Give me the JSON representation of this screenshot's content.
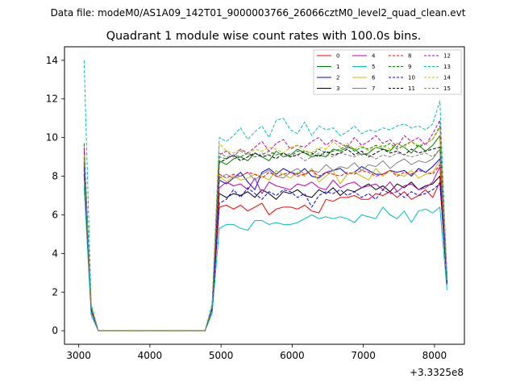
{
  "figure": {
    "suptitle": "Data file: modeM0/AS1A09_142T01_9000003766_26066cztM0_level2_quad_clean.evt"
  },
  "chart_data": {
    "type": "line",
    "title": "Quadrant 1 module wise count rates with 100.0s bins.",
    "xlabel": "",
    "ylabel": "",
    "x_offset_label": "+3.3325e8",
    "xlim": [
      2800,
      8420
    ],
    "ylim": [
      -0.7,
      14.7
    ],
    "xticks": [
      3000,
      4000,
      5000,
      6000,
      7000,
      8000
    ],
    "xtick_labels": [
      "3000",
      "4000",
      "5000",
      "6000",
      "7000",
      "8000"
    ],
    "yticks": [
      0,
      2,
      4,
      6,
      8,
      10,
      12,
      14
    ],
    "ytick_labels": [
      "0",
      "2",
      "4",
      "6",
      "8",
      "10",
      "12",
      "14"
    ],
    "grid": false,
    "legend_position": "upper right",
    "legend_columns": 4,
    "x": [
      3075,
      3175,
      3275,
      4775,
      4875,
      4975,
      5075,
      5175,
      5275,
      5375,
      5475,
      5575,
      5675,
      5775,
      5875,
      5975,
      6075,
      6175,
      6275,
      6375,
      6475,
      6575,
      6675,
      6775,
      6875,
      6975,
      7075,
      7175,
      7275,
      7375,
      7475,
      7575,
      7675,
      7775,
      7875,
      7975,
      8075,
      8175
    ],
    "series": [
      {
        "name": "0",
        "color": "#ff0000",
        "dash": "solid",
        "values": [
          8.5,
          1.0,
          0,
          0,
          1.1,
          6.4,
          6.5,
          6.3,
          6.5,
          6.2,
          6.4,
          6.6,
          6.0,
          6.3,
          6.4,
          6.4,
          6.3,
          6.5,
          6.2,
          6.1,
          6.8,
          6.7,
          6.9,
          6.9,
          7.0,
          6.8,
          6.8,
          7.1,
          7.0,
          7.2,
          6.9,
          7.2,
          6.8,
          7.0,
          7.3,
          6.9,
          7.7,
          2.6
        ]
      },
      {
        "name": "1",
        "color": "#008000",
        "dash": "solid",
        "values": [
          9.0,
          1.3,
          0,
          0,
          1.3,
          8.8,
          8.6,
          8.9,
          9.0,
          8.8,
          9.2,
          9.0,
          8.8,
          9.3,
          9.0,
          9.1,
          9.4,
          9.2,
          9.0,
          9.1,
          9.0,
          9.4,
          9.3,
          9.5,
          9.4,
          9.1,
          9.2,
          9.5,
          9.4,
          9.3,
          9.7,
          9.5,
          9.2,
          9.6,
          9.3,
          9.6,
          10.1,
          2.7
        ]
      },
      {
        "name": "2",
        "color": "#0000ff",
        "dash": "solid",
        "values": [
          8.7,
          1.1,
          0,
          0,
          1.2,
          7.8,
          7.6,
          7.9,
          8.2,
          7.7,
          7.3,
          8.2,
          8.4,
          8.1,
          8.4,
          8.2,
          8.1,
          8.4,
          8.0,
          7.9,
          8.2,
          8.3,
          8.4,
          8.1,
          8.2,
          8.5,
          8.3,
          8.1,
          8.1,
          8.3,
          8.2,
          8.3,
          8.0,
          8.4,
          8.2,
          8.5,
          8.9,
          2.4
        ]
      },
      {
        "name": "3",
        "color": "#000000",
        "dash": "solid",
        "values": [
          8.1,
          1.2,
          0,
          0,
          1.2,
          7.1,
          6.9,
          7.1,
          7.0,
          7.2,
          6.9,
          7.3,
          7.1,
          6.8,
          7.2,
          7.1,
          7.3,
          7.0,
          6.9,
          7.3,
          7.1,
          7.4,
          7.0,
          7.3,
          7.2,
          7.4,
          7.6,
          7.3,
          7.5,
          7.2,
          7.6,
          7.4,
          7.7,
          7.3,
          7.5,
          7.6,
          8.0,
          2.5
        ]
      },
      {
        "name": "4",
        "color": "#bf00bf",
        "dash": "solid",
        "values": [
          8.6,
          1.1,
          0,
          0,
          1.1,
          7.4,
          7.7,
          7.5,
          7.6,
          7.3,
          7.9,
          7.1,
          7.7,
          7.5,
          7.4,
          7.3,
          7.6,
          7.5,
          7.7,
          7.4,
          7.3,
          7.8,
          7.4,
          7.6,
          7.7,
          7.4,
          7.5,
          7.6,
          7.3,
          7.7,
          7.2,
          7.5,
          7.6,
          7.3,
          7.4,
          7.7,
          8.5,
          2.6
        ]
      },
      {
        "name": "5",
        "color": "#00bfbf",
        "dash": "solid",
        "values": [
          7.5,
          0.8,
          0,
          0,
          0.9,
          5.3,
          5.5,
          5.5,
          5.3,
          5.2,
          5.7,
          5.7,
          5.5,
          5.6,
          5.5,
          5.5,
          5.6,
          5.8,
          6.0,
          5.8,
          5.9,
          5.8,
          5.9,
          5.8,
          5.6,
          6.0,
          5.9,
          5.8,
          6.4,
          6.0,
          5.8,
          6.2,
          5.6,
          6.2,
          6.3,
          6.1,
          6.4,
          2.1
        ]
      },
      {
        "name": "6",
        "color": "#bfbf00",
        "dash": "solid",
        "values": [
          8.9,
          1.2,
          0,
          0,
          1.2,
          8.0,
          7.7,
          8.0,
          7.8,
          7.9,
          8.1,
          8.0,
          7.8,
          8.3,
          8.1,
          7.9,
          8.2,
          8.0,
          8.4,
          7.7,
          8.0,
          8.3,
          7.6,
          8.1,
          8.2,
          8.0,
          7.8,
          8.4,
          8.0,
          8.3,
          8.1,
          8.0,
          8.3,
          7.9,
          8.1,
          8.2,
          8.8,
          2.6
        ]
      },
      {
        "name": "7",
        "color": "#808080",
        "dash": "solid",
        "values": [
          8.3,
          1.1,
          0,
          0,
          1.2,
          7.9,
          8.1,
          7.9,
          8.0,
          8.2,
          7.8,
          8.1,
          8.3,
          8.0,
          7.9,
          8.2,
          8.4,
          8.1,
          8.3,
          8.2,
          8.6,
          8.3,
          8.5,
          8.4,
          8.7,
          8.3,
          8.6,
          8.5,
          8.8,
          8.4,
          8.7,
          8.9,
          8.6,
          8.8,
          8.7,
          8.9,
          9.4,
          2.7
        ]
      },
      {
        "name": "8",
        "color": "#ff0000",
        "dash": "dashed",
        "values": [
          9.3,
          1.2,
          0,
          0,
          1.2,
          8.1,
          7.9,
          8.1,
          8.0,
          8.2,
          8.1,
          7.9,
          8.2,
          8.0,
          8.1,
          8.2,
          8.0,
          8.1,
          8.3,
          8.0,
          8.2,
          8.1,
          8.0,
          8.2,
          8.1,
          8.3,
          8.2,
          8.0,
          8.1,
          8.3,
          8.0,
          8.2,
          8.1,
          8.3,
          8.2,
          8.1,
          8.6,
          2.6
        ]
      },
      {
        "name": "9",
        "color": "#008000",
        "dash": "dashed",
        "values": [
          9.7,
          1.3,
          0,
          0,
          1.3,
          9.0,
          8.9,
          9.1,
          9.0,
          9.2,
          9.0,
          9.1,
          9.3,
          9.1,
          9.2,
          9.0,
          9.3,
          9.2,
          9.1,
          9.4,
          9.2,
          9.3,
          9.4,
          9.6,
          9.3,
          9.5,
          9.4,
          9.6,
          9.5,
          9.7,
          9.4,
          9.6,
          9.8,
          9.5,
          9.7,
          9.9,
          10.6,
          2.8
        ]
      },
      {
        "name": "10",
        "color": "#0000ff",
        "dash": "dashed",
        "values": [
          8.4,
          1.1,
          0,
          0,
          1.1,
          6.6,
          6.8,
          7.3,
          6.9,
          7.4,
          7.1,
          6.8,
          7.2,
          7.0,
          7.3,
          7.2,
          6.9,
          7.1,
          6.4,
          7.0,
          7.2,
          7.1,
          7.3,
          7.0,
          7.2,
          6.9,
          7.1,
          6.8,
          7.3,
          7.1,
          7.2,
          6.9,
          7.2,
          7.0,
          7.1,
          7.3,
          7.6,
          2.5
        ]
      },
      {
        "name": "11",
        "color": "#000000",
        "dash": "dashed",
        "values": [
          8.8,
          1.2,
          0,
          0,
          1.2,
          8.7,
          8.9,
          9.1,
          8.8,
          9.0,
          9.2,
          9.0,
          9.1,
          8.9,
          9.2,
          9.0,
          9.1,
          9.3,
          9.2,
          9.0,
          9.3,
          9.1,
          9.2,
          9.4,
          9.1,
          9.3,
          9.0,
          9.2,
          9.4,
          9.2,
          9.3,
          9.1,
          9.4,
          9.2,
          9.3,
          9.4,
          9.5,
          2.6
        ]
      },
      {
        "name": "12",
        "color": "#bf00bf",
        "dash": "dashed",
        "values": [
          9.5,
          1.3,
          0,
          0,
          1.3,
          9.1,
          9.3,
          9.0,
          9.4,
          9.2,
          9.5,
          9.8,
          9.3,
          9.7,
          9.9,
          9.4,
          9.6,
          9.5,
          9.8,
          10.0,
          9.6,
          9.9,
          9.7,
          9.5,
          10.0,
          9.6,
          9.8,
          10.1,
          9.7,
          9.9,
          9.5,
          10.1,
          9.8,
          10.0,
          9.6,
          10.2,
          10.9,
          2.9
        ]
      },
      {
        "name": "13",
        "color": "#00bfbf",
        "dash": "dashed",
        "values": [
          14.0,
          1.4,
          0,
          0,
          1.4,
          10.0,
          9.8,
          10.1,
          10.5,
          9.9,
          10.3,
          10.6,
          10.0,
          10.9,
          11.0,
          10.4,
          10.2,
          10.8,
          10.1,
          10.6,
          10.4,
          10.5,
          10.1,
          10.3,
          10.6,
          10.2,
          10.4,
          10.3,
          10.5,
          10.4,
          10.6,
          10.7,
          10.5,
          10.6,
          10.4,
          10.7,
          11.9,
          2.6
        ]
      },
      {
        "name": "14",
        "color": "#bfbf00",
        "dash": "dashed",
        "values": [
          9.1,
          1.3,
          0,
          0,
          1.3,
          9.7,
          9.3,
          9.2,
          9.4,
          9.1,
          9.4,
          9.3,
          9.5,
          9.4,
          9.2,
          9.5,
          9.6,
          9.3,
          9.2,
          9.5,
          9.4,
          9.8,
          9.5,
          9.7,
          9.4,
          9.6,
          9.3,
          9.5,
          9.6,
          9.4,
          9.7,
          9.5,
          9.8,
          9.6,
          9.7,
          9.9,
          10.5,
          2.7
        ]
      },
      {
        "name": "15",
        "color": "#808080",
        "dash": "dashed",
        "values": [
          9.0,
          1.2,
          0,
          0,
          1.2,
          9.2,
          9.0,
          9.1,
          9.3,
          9.1,
          9.0,
          9.2,
          9.1,
          9.3,
          9.0,
          9.2,
          9.1,
          8.8,
          9.0,
          9.2,
          9.1,
          9.0,
          9.2,
          9.1,
          9.0,
          9.2,
          9.1,
          8.9,
          9.1,
          9.0,
          9.2,
          9.1,
          9.0,
          9.1,
          9.2,
          9.0,
          9.4,
          2.6
        ]
      }
    ]
  }
}
